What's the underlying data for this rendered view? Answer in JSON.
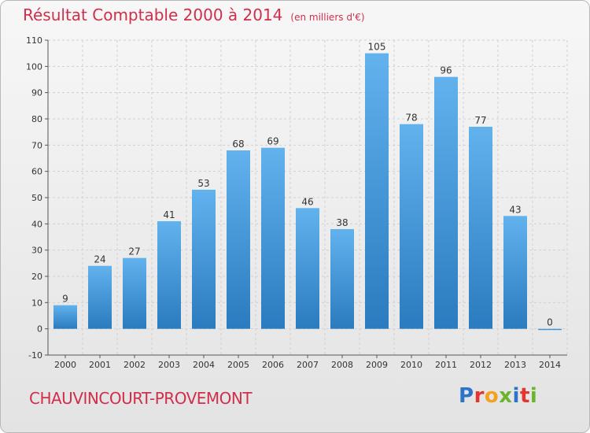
{
  "chart_data": {
    "type": "bar",
    "title": "Résultat Comptable 2000 à 2014",
    "subtitle": "(en milliers d'€)",
    "categories": [
      "2000",
      "2001",
      "2002",
      "2003",
      "2004",
      "2005",
      "2006",
      "2007",
      "2008",
      "2009",
      "2010",
      "2011",
      "2012",
      "2013",
      "2014"
    ],
    "values": [
      9,
      24,
      27,
      41,
      53,
      68,
      69,
      46,
      38,
      105,
      78,
      96,
      77,
      43,
      0
    ],
    "ylim": [
      -10,
      110
    ],
    "yticks": [
      -10,
      0,
      10,
      20,
      30,
      40,
      50,
      60,
      70,
      80,
      90,
      100,
      110
    ],
    "grid": true,
    "bar_color_top": "#62b2ee",
    "bar_color_bottom": "#2a7bbf"
  },
  "footer": {
    "place": "CHAUVINCOURT-PROVEMONT",
    "logo": [
      "P",
      "r",
      "o",
      "x",
      "i",
      "t",
      "i"
    ]
  }
}
